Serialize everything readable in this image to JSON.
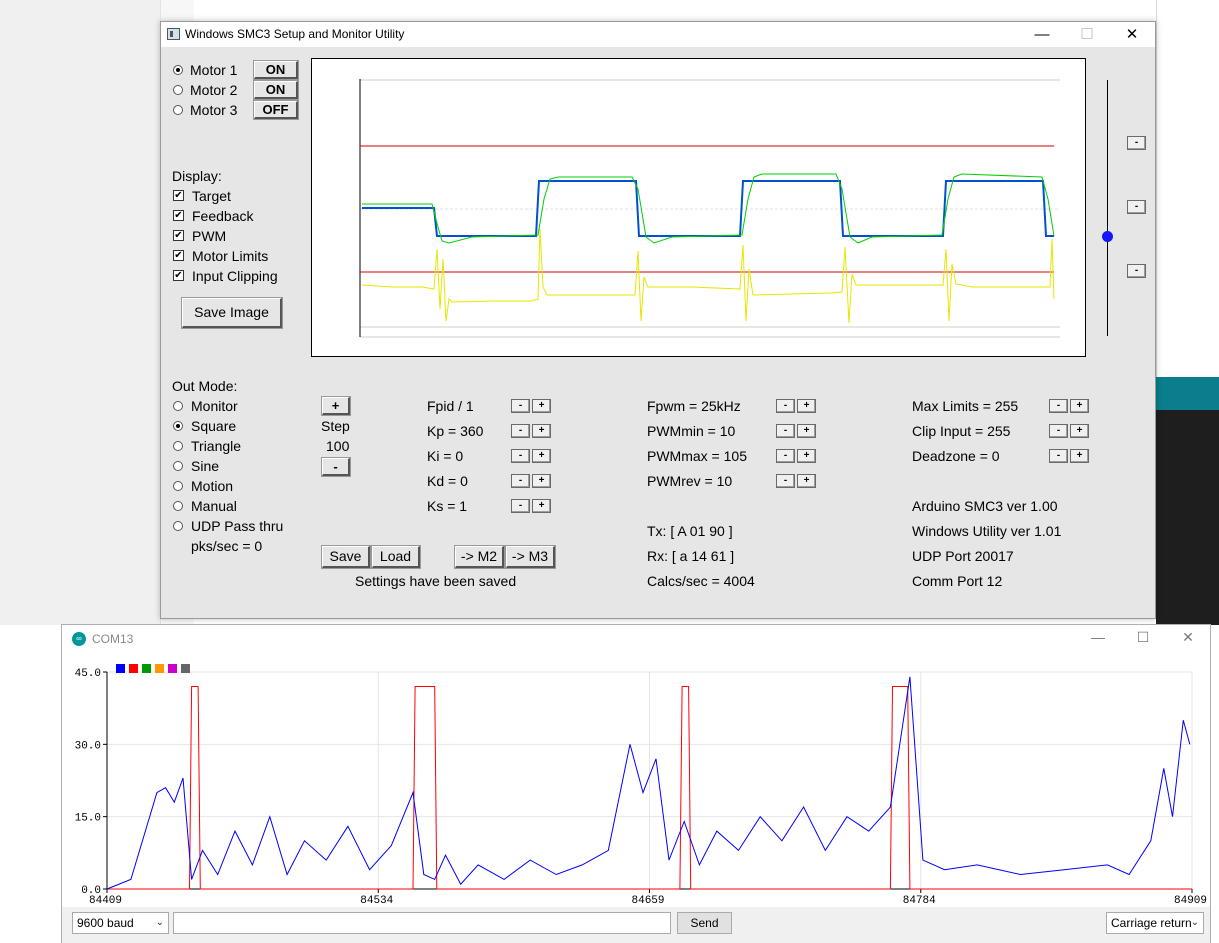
{
  "smc": {
    "title": "Windows SMC3 Setup and Monitor Utility",
    "motors": [
      {
        "label": "Motor 1",
        "state": "ON",
        "selected": true
      },
      {
        "label": "Motor 2",
        "state": "ON",
        "selected": false
      },
      {
        "label": "Motor 3",
        "state": "OFF",
        "selected": false
      }
    ],
    "display_label": "Display:",
    "display_options": [
      {
        "label": "Target",
        "checked": true
      },
      {
        "label": "Feedback",
        "checked": true
      },
      {
        "label": "PWM",
        "checked": true
      },
      {
        "label": "Motor Limits",
        "checked": true
      },
      {
        "label": "Input Clipping",
        "checked": true
      }
    ],
    "save_image": "Save Image",
    "out_mode_label": "Out Mode:",
    "out_modes": [
      {
        "label": "Monitor",
        "selected": false
      },
      {
        "label": "Square",
        "selected": true
      },
      {
        "label": "Triangle",
        "selected": false
      },
      {
        "label": "Sine",
        "selected": false
      },
      {
        "label": "Motion",
        "selected": false
      },
      {
        "label": "Manual",
        "selected": false
      },
      {
        "label": "UDP Pass thru",
        "selected": false
      }
    ],
    "pks": "pks/sec = 0",
    "step": {
      "plus": "+",
      "label": "Step",
      "value": "100",
      "minus": "-"
    },
    "pid_params": [
      "Fpid / 1",
      "Kp = 360",
      "Ki = 0",
      "Kd = 0",
      "Ks = 1"
    ],
    "pwm_params": [
      "Fpwm = 25kHz",
      "PWMmin = 10",
      "PWMmax = 105",
      "PWMrev = 10"
    ],
    "limit_params": [
      "Max Limits = 255",
      "Clip Input = 255",
      "Deadzone = 0"
    ],
    "small_minus": "-",
    "small_plus": "+",
    "save": "Save",
    "load": "Load",
    "to_m2": "-> M2",
    "to_m3": "-> M3",
    "status": "Settings have been saved",
    "tx": "Tx: [ A 01 90 ]",
    "rx": "Rx: [ a 14 61 ]",
    "calcs": "Calcs/sec = 4004",
    "info": [
      "Arduino SMC3 ver 1.00",
      "Windows Utility ver 1.01",
      "UDP Port 20017",
      "Comm Port 12"
    ],
    "zoom_buttons": [
      "-",
      "-",
      "-"
    ],
    "colors": {
      "target": "#0050d0",
      "feedback": "#00d000",
      "pwm": "#f0f000",
      "limits": "#d00000"
    }
  },
  "serial": {
    "title": "COM13",
    "baud": "9600 baud",
    "send": "Send",
    "line_ending": "Carriage return",
    "series_colors": [
      "#0000ff",
      "#ff0000",
      "#009900",
      "#ff9900",
      "#cc00cc",
      "#666666"
    ],
    "chart_data": {
      "type": "line",
      "ylim": [
        0,
        45
      ],
      "ytick_labels": [
        "45.0",
        "30.0",
        "15.0",
        "0.0"
      ],
      "xtick_labels": [
        "84409",
        "84534",
        "84659",
        "84784",
        "84909"
      ],
      "xlim": [
        84409,
        84909
      ],
      "series": [
        {
          "color": "#ff0000",
          "x": [
            84409,
            84447,
            84448,
            84451,
            84452,
            84550,
            84551,
            84560,
            84561,
            84673,
            84674,
            84677,
            84678,
            84770,
            84771,
            84778,
            84779,
            84909
          ],
          "values": [
            0,
            0,
            42,
            42,
            0,
            0,
            42,
            42,
            0,
            0,
            42,
            42,
            0,
            0,
            42,
            42,
            0,
            0
          ]
        },
        {
          "color": "#0000ff",
          "x": [
            84409,
            84420,
            84432,
            84436,
            84440,
            84444,
            84448,
            84453,
            84460,
            84468,
            84476,
            84484,
            84492,
            84500,
            84510,
            84520,
            84530,
            84540,
            84550,
            84555,
            84560,
            84565,
            84572,
            84580,
            84592,
            84604,
            84616,
            84628,
            84640,
            84650,
            84653,
            84656,
            84662,
            84668,
            84675,
            84682,
            84690,
            84700,
            84710,
            84720,
            84730,
            84740,
            84750,
            84760,
            84770,
            84779,
            84785,
            84795,
            84810,
            84830,
            84850,
            84870,
            84880,
            84890,
            84896,
            84900,
            84905,
            84908
          ],
          "values": [
            0,
            2,
            20,
            21,
            18,
            23,
            2,
            8,
            3,
            12,
            5,
            15,
            3,
            10,
            6,
            13,
            4,
            9,
            20,
            3,
            2,
            7,
            1,
            5,
            2,
            6,
            3,
            5,
            8,
            30,
            25,
            20,
            27,
            6,
            14,
            5,
            12,
            8,
            15,
            10,
            17,
            8,
            15,
            12,
            17,
            44,
            6,
            4,
            5,
            3,
            4,
            5,
            3,
            10,
            25,
            15,
            35,
            30
          ]
        }
      ]
    }
  }
}
